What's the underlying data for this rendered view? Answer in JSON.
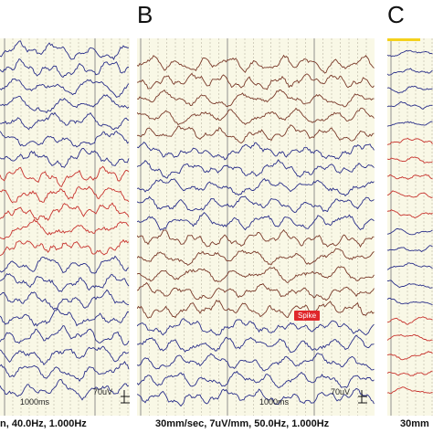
{
  "panels": {
    "a": {
      "footer": "n, 40.0Hz, 1.000Hz",
      "time_scale": "1000ms",
      "amp_scale": "70uV"
    },
    "b": {
      "letter": "B",
      "footer": "30mm/sec, 7uV/mm, 50.0Hz, 1.000Hz",
      "time_scale": "1000ms",
      "amp_scale": "70uV",
      "event_label": "Spike"
    },
    "c": {
      "letter": "C",
      "footer": "30mm"
    }
  },
  "colors": {
    "background": "#f9f8e6",
    "blue_trace": "#2a2f8a",
    "red_trace": "#c8332e",
    "brown_trace": "#7a3a2a",
    "marker": "#f4d11c",
    "spike_badge": "#e0272b"
  }
}
